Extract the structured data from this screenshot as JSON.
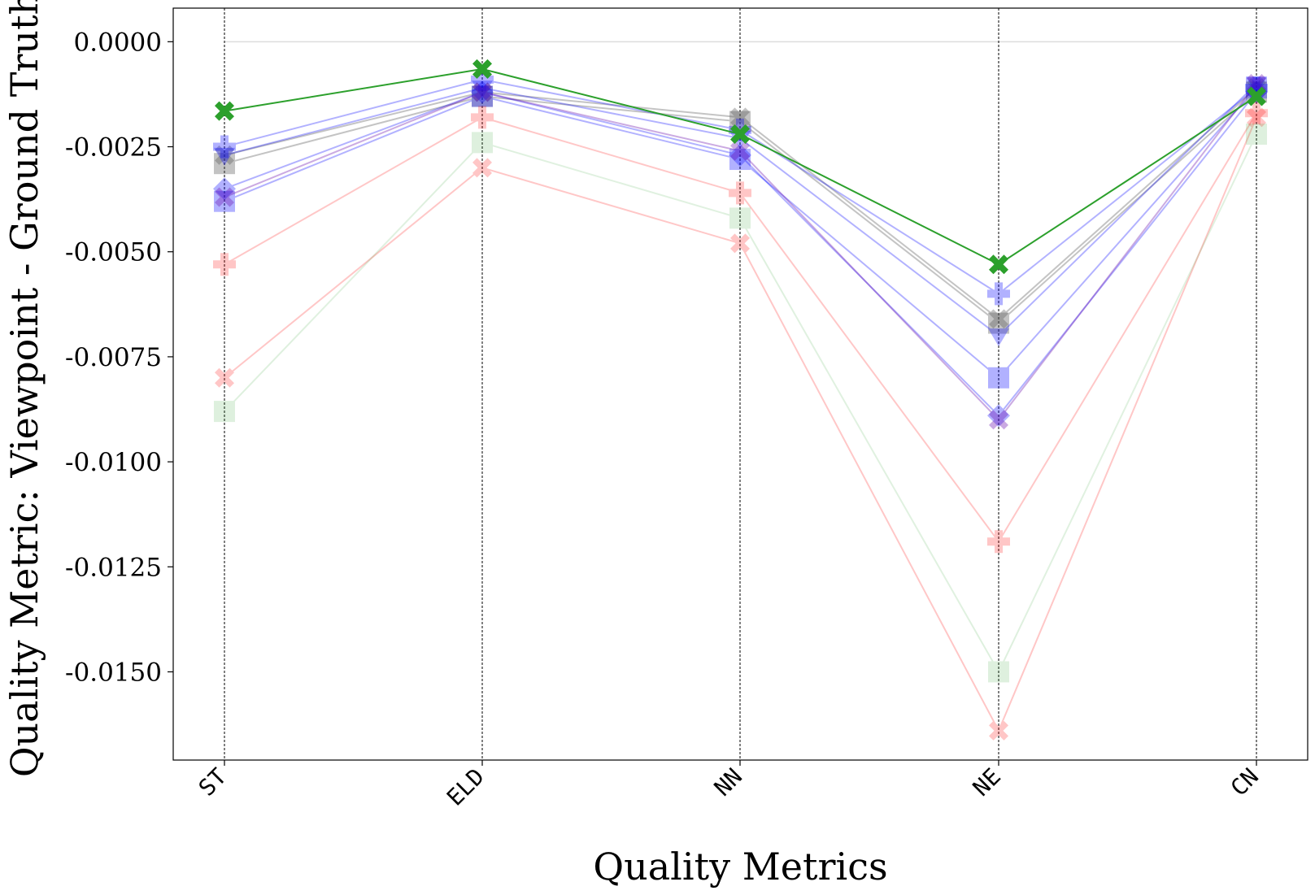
{
  "chart_data": {
    "type": "line",
    "title": "",
    "xlabel": "Quality Metrics",
    "ylabel": "Quality Metric: Viewpoint - Ground Truth",
    "categories": [
      "ST",
      "ELD",
      "NN",
      "NE",
      "CN"
    ],
    "ylim": [
      -0.0171,
      0.0008
    ],
    "yticks": [
      0.0,
      -0.0025,
      -0.005,
      -0.0075,
      -0.01,
      -0.0125,
      -0.015
    ],
    "ytick_labels": [
      "0.0000",
      "-0.0025",
      "-0.0050",
      "-0.0075",
      "-0.0100",
      "-0.0125",
      "-0.0150"
    ],
    "grid": "vertical dashed lines at each category; faint horizontal line at 0",
    "legend": "none",
    "colors": {
      "red": "#ff0000",
      "green": "#2ca02c",
      "blue": "#0000ff",
      "gray": "#555555",
      "purple": "#6a0dad",
      "highlight": "#2ca02c"
    },
    "series": [
      {
        "color": "green",
        "marker": "x",
        "alpha": 1.0,
        "highlight": true,
        "values": [
          -0.00165,
          -0.00065,
          -0.0022,
          -0.0053,
          -0.0013
        ]
      },
      {
        "color": "gray",
        "marker": "square",
        "alpha": 0.35,
        "values": [
          -0.0029,
          -0.0013,
          -0.0019,
          -0.0067,
          -0.0012
        ]
      },
      {
        "color": "gray",
        "marker": "x",
        "alpha": 0.35,
        "values": [
          -0.0027,
          -0.0012,
          -0.0018,
          -0.0066,
          -0.0011
        ]
      },
      {
        "color": "blue",
        "marker": "plus",
        "alpha": 0.3,
        "values": [
          -0.0025,
          -0.0009,
          -0.0021,
          -0.006,
          -0.0011
        ]
      },
      {
        "color": "blue",
        "marker": "triangle",
        "alpha": 0.3,
        "values": [
          -0.0027,
          -0.0011,
          -0.0023,
          -0.007,
          -0.001
        ]
      },
      {
        "color": "blue",
        "marker": "diamond",
        "alpha": 0.3,
        "values": [
          -0.0035,
          -0.0012,
          -0.0027,
          -0.0089,
          -0.0012
        ]
      },
      {
        "color": "blue",
        "marker": "square",
        "alpha": 0.3,
        "values": [
          -0.0038,
          -0.0013,
          -0.0028,
          -0.008,
          -0.0011
        ]
      },
      {
        "color": "purple",
        "marker": "x",
        "alpha": 0.35,
        "values": [
          -0.0037,
          -0.0012,
          -0.0026,
          -0.009,
          -0.001
        ]
      },
      {
        "color": "red",
        "marker": "plus",
        "alpha": 0.22,
        "values": [
          -0.0053,
          -0.0018,
          -0.0036,
          -0.0119,
          -0.0017
        ]
      },
      {
        "color": "red",
        "marker": "x",
        "alpha": 0.22,
        "values": [
          -0.008,
          -0.003,
          -0.0048,
          -0.0164,
          -0.0018
        ]
      },
      {
        "color": "green",
        "marker": "square",
        "alpha": 0.15,
        "values": [
          -0.0088,
          -0.0024,
          -0.0042,
          -0.015,
          -0.0022
        ]
      }
    ]
  }
}
